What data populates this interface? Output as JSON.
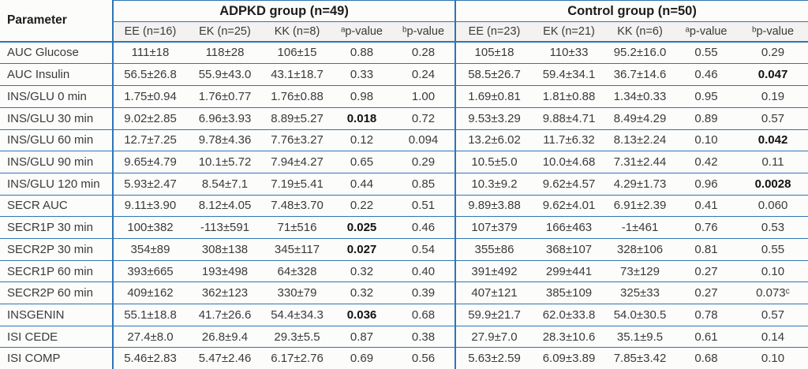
{
  "colors": {
    "rule_blue": "#2e75b6",
    "body_text": "#3a3a3a",
    "header_text": "#1c1c1c",
    "subheader_bg": "#f3f2f0",
    "background": "#fcfcfb"
  },
  "table": {
    "param_header": "Parameter",
    "groups": [
      {
        "label": "ADPKD group (n=49)"
      },
      {
        "label": "Control group (n=50)"
      }
    ],
    "subheaders": [
      "EE (n=16)",
      "EK (n=25)",
      "KK (n=8)",
      "ᵃp-value",
      "ᵇp-value",
      "EE (n=23)",
      "EK (n=21)",
      "KK (n=6)",
      "ᵃp-value",
      "ᵇp-value"
    ],
    "rows": [
      {
        "param": "AUC Glucose",
        "values": [
          "111±18",
          "118±28",
          "106±15",
          "0.88",
          "0.28",
          "105±18",
          "110±33",
          "95.2±16.0",
          "0.55",
          "0.29"
        ],
        "bold": []
      },
      {
        "param": "AUC Insulin",
        "values": [
          "56.5±26.8",
          "55.9±43.0",
          "43.1±18.7",
          "0.33",
          "0.24",
          "58.5±26.7",
          "59.4±34.1",
          "36.7±14.6",
          "0.46",
          "0.047"
        ],
        "bold": [
          9
        ]
      },
      {
        "param": "INS/GLU 0 min",
        "values": [
          "1.75±0.94",
          "1.76±0.77",
          "1.76±0.88",
          "0.98",
          "1.00",
          "1.69±0.81",
          "1.81±0.88",
          "1.34±0.33",
          "0.95",
          "0.19"
        ],
        "bold": []
      },
      {
        "param": "INS/GLU 30 min",
        "values": [
          "9.02±2.85",
          "6.96±3.93",
          "8.89±5.27",
          "0.018",
          "0.72",
          "9.53±3.29",
          "9.88±4.71",
          "8.49±4.29",
          "0.89",
          "0.57"
        ],
        "bold": [
          3
        ]
      },
      {
        "param": "INS/GLU 60 min",
        "values": [
          "12.7±7.25",
          "9.78±4.36",
          "7.76±3.27",
          "0.12",
          "0.094",
          "13.2±6.02",
          "11.7±6.32",
          "8.13±2.24",
          "0.10",
          "0.042"
        ],
        "bold": [
          9
        ]
      },
      {
        "param": "INS/GLU 90 min",
        "values": [
          "9.65±4.79",
          "10.1±5.72",
          "7.94±4.27",
          "0.65",
          "0.29",
          "10.5±5.0",
          "10.0±4.68",
          "7.31±2.44",
          "0.42",
          "0.11"
        ],
        "bold": []
      },
      {
        "param": "INS/GLU 120 min",
        "values": [
          "5.93±2.47",
          "8.54±7.1",
          "7.19±5.41",
          "0.44",
          "0.85",
          "10.3±9.2",
          "9.62±4.57",
          "4.29±1.73",
          "0.96",
          "0.0028"
        ],
        "bold": [
          9
        ]
      },
      {
        "param": "SECR AUC",
        "values": [
          "9.11±3.90",
          "8.12±4.05",
          "7.48±3.70",
          "0.22",
          "0.51",
          "9.89±3.88",
          "9.62±4.01",
          "6.91±2.39",
          "0.41",
          "0.060"
        ],
        "bold": []
      },
      {
        "param": "SECR1P 30 min",
        "values": [
          "100±382",
          "-113±591",
          "71±516",
          "0.025",
          "0.46",
          "107±379",
          "166±463",
          "-1±461",
          "0.76",
          "0.53"
        ],
        "bold": [
          3
        ]
      },
      {
        "param": "SECR2P 30 min",
        "values": [
          "354±89",
          "308±138",
          "345±117",
          "0.027",
          "0.54",
          "355±86",
          "368±107",
          "328±106",
          "0.81",
          "0.55"
        ],
        "bold": [
          3
        ]
      },
      {
        "param": "SECR1P 60 min",
        "values": [
          "393±665",
          "193±498",
          "64±328",
          "0.32",
          "0.40",
          "391±492",
          "299±441",
          "73±129",
          "0.27",
          "0.10"
        ],
        "bold": []
      },
      {
        "param": "SECR2P 60 min",
        "values": [
          "409±162",
          "362±123",
          "330±79",
          "0.32",
          "0.39",
          "407±121",
          "385±109",
          "325±33",
          "0.27",
          "0.073ᶜ"
        ],
        "bold": []
      },
      {
        "param": "INSGENIN",
        "values": [
          "55.1±18.8",
          "41.7±26.6",
          "54.4±34.3",
          "0.036",
          "0.68",
          "59.9±21.7",
          "62.0±33.8",
          "54.0±30.5",
          "0.78",
          "0.57"
        ],
        "bold": [
          3
        ]
      },
      {
        "param": "ISI CEDE",
        "values": [
          "27.4±8.0",
          "26.8±9.4",
          "29.3±5.5",
          "0.87",
          "0.38",
          "27.9±7.0",
          "28.3±10.6",
          "35.1±9.5",
          "0.61",
          "0.14"
        ],
        "bold": []
      },
      {
        "param": "ISI COMP",
        "values": [
          "5.46±2.83",
          "5.47±2.46",
          "6.17±2.76",
          "0.69",
          "0.56",
          "5.63±2.59",
          "6.09±3.89",
          "7.85±3.42",
          "0.68",
          "0.10"
        ],
        "bold": []
      }
    ]
  }
}
